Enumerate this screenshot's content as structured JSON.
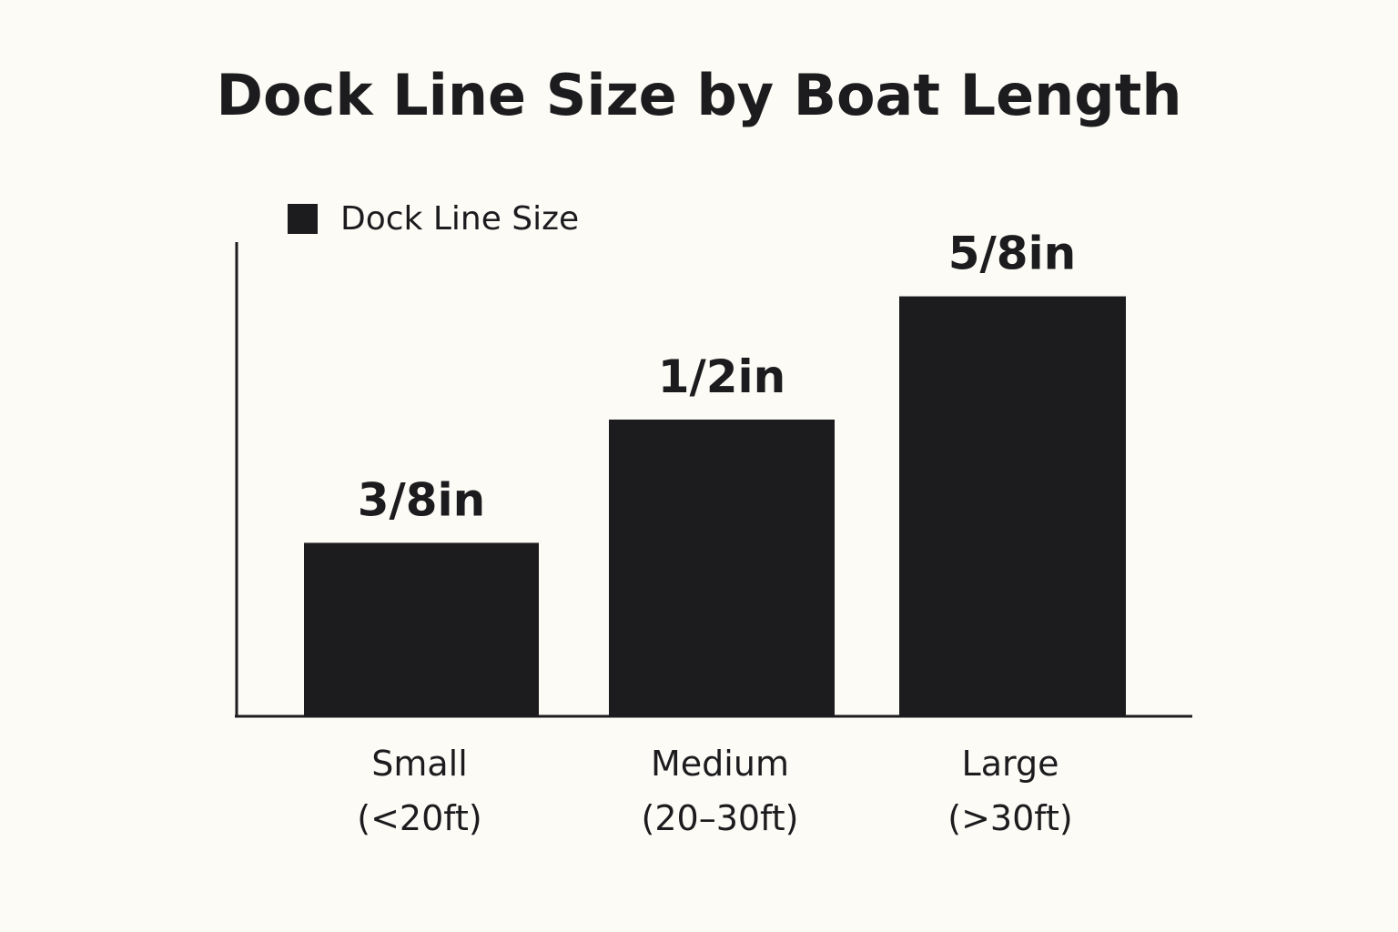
{
  "chart_data": {
    "type": "bar",
    "title": "Dock Line Size by Boat Length",
    "categories": [
      "Small\n(<20ft)",
      "Medium\n(20–30ft)",
      "Large\n(>30ft)"
    ],
    "series": [
      {
        "name": "Dock Line Size",
        "values": [
          0.375,
          0.5,
          0.625
        ],
        "labels": [
          "3/8in",
          "1/2in",
          "5/8in"
        ]
      }
    ],
    "xlabel": "",
    "ylabel": "",
    "ylim": [
      0.2,
      0.68
    ],
    "grid": false,
    "legend_position": "top-left",
    "colors": {
      "bar": "#1c1c1e",
      "axis": "#1c1c1e",
      "background": "#fcfbf6"
    }
  }
}
